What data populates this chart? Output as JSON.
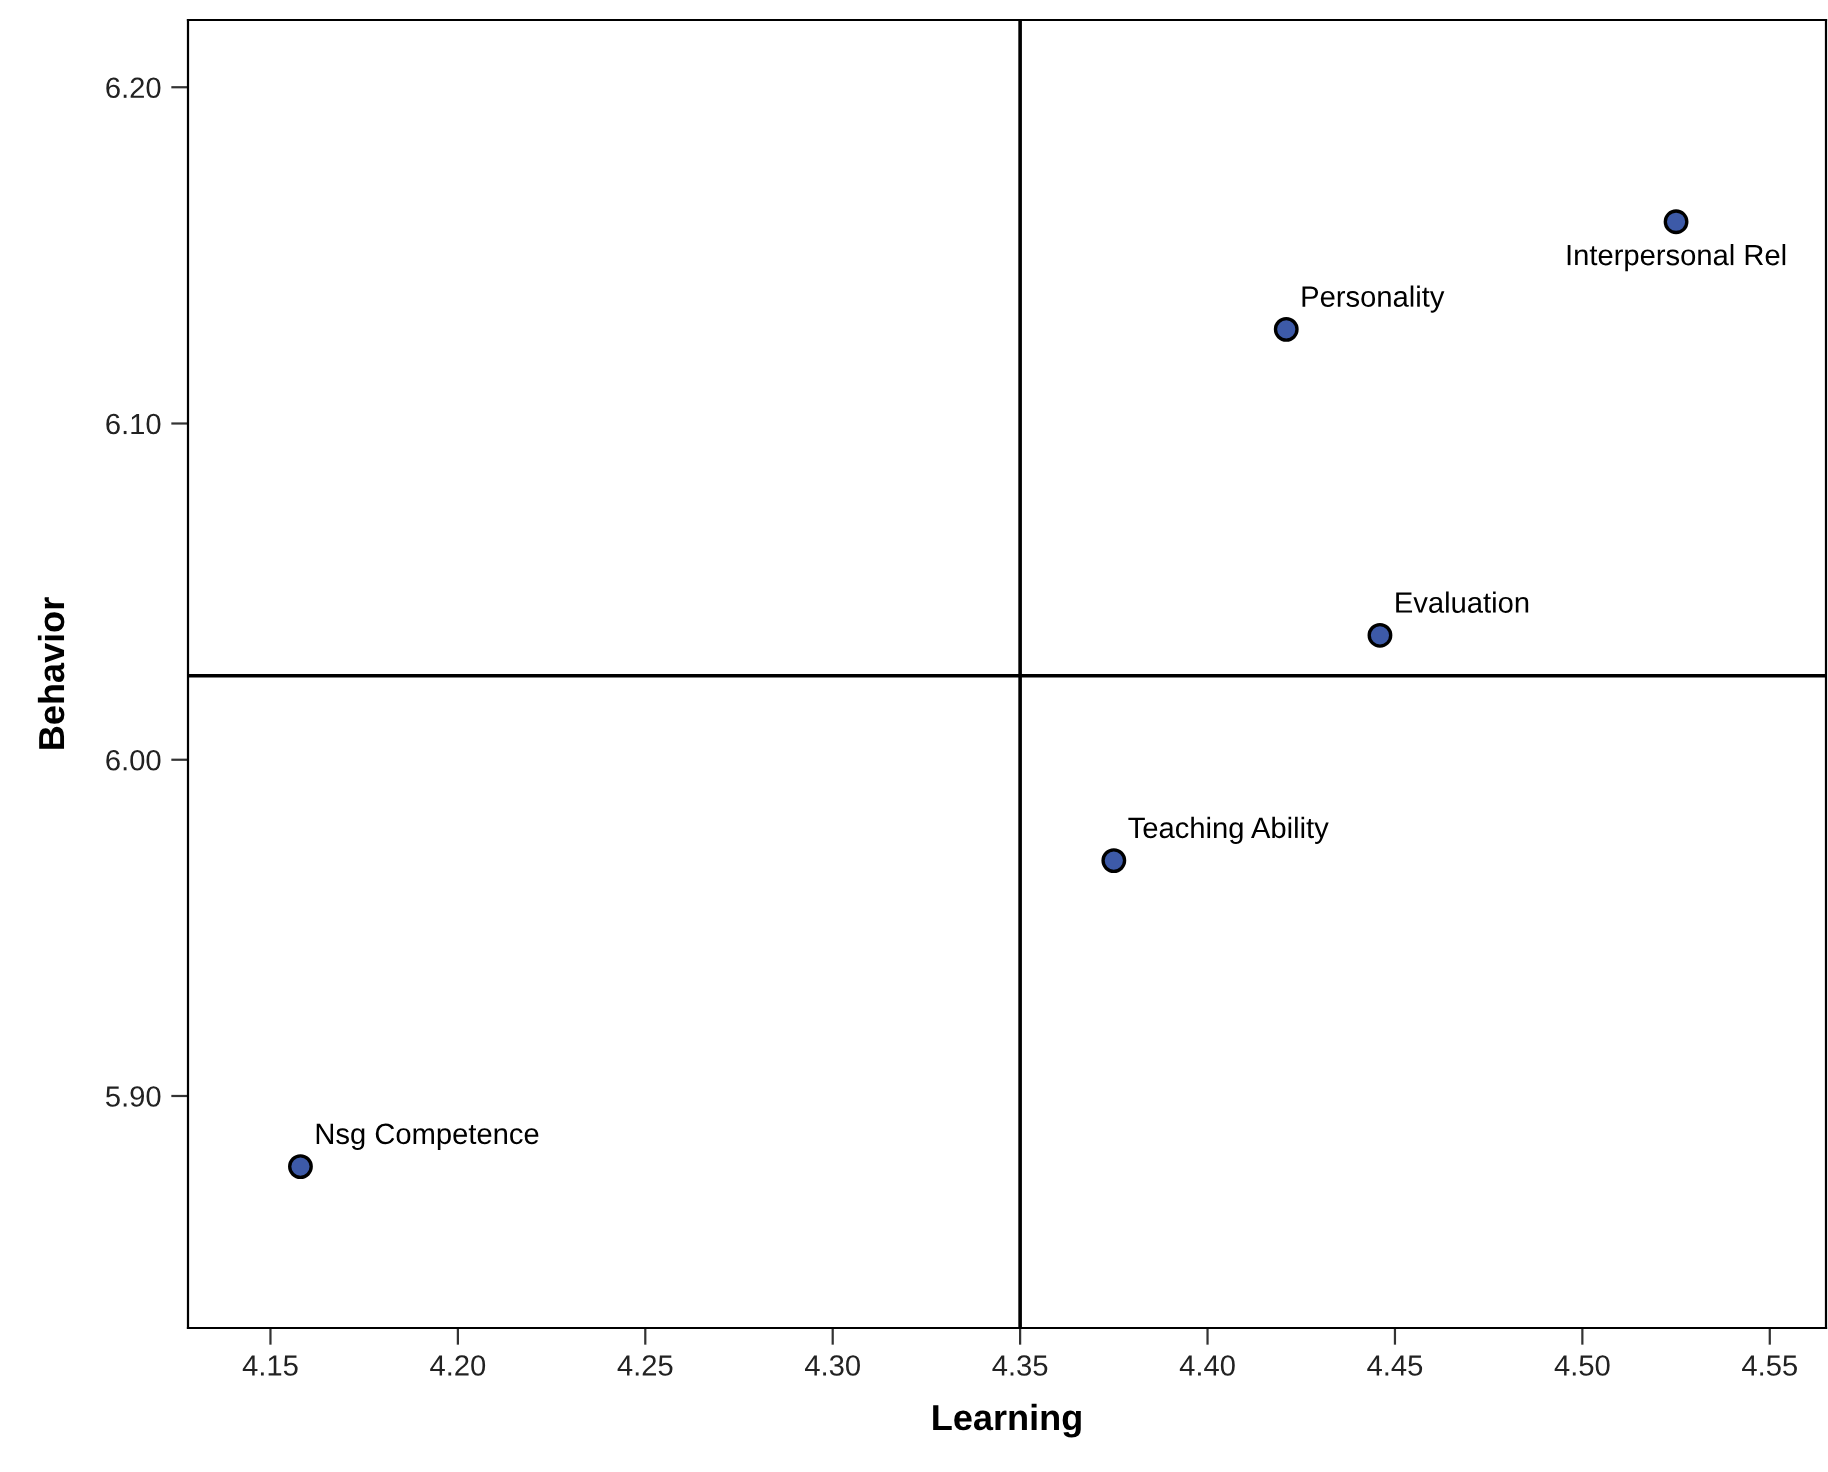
{
  "chart_data": {
    "type": "scatter",
    "xlabel": "Learning",
    "ylabel": "Behavior",
    "x": [
      4.525,
      4.421,
      4.446,
      4.375,
      4.158
    ],
    "series": [
      {
        "color": "#3d5aa8",
        "values": [
          6.16,
          6.128,
          6.037,
          5.97,
          5.879
        ]
      }
    ],
    "marker": "circle",
    "grid": false,
    "legend": false,
    "xlim": [
      4.128,
      4.565
    ],
    "xticks": [
      {
        "value": 4.15,
        "label": "4.15"
      },
      {
        "value": 4.2,
        "label": "4.20"
      },
      {
        "value": 4.25,
        "label": "4.25"
      },
      {
        "value": 4.3,
        "label": "4.30"
      },
      {
        "value": 4.35,
        "label": "4.35"
      },
      {
        "value": 4.4,
        "label": "4.40"
      },
      {
        "value": 4.45,
        "label": "4.45"
      },
      {
        "value": 4.5,
        "label": "4.50"
      },
      {
        "value": 4.55,
        "label": "4.55"
      }
    ],
    "ylim": [
      5.831,
      6.22
    ],
    "yticks": [
      {
        "value": 5.9,
        "label": "5.90"
      },
      {
        "value": 6.0,
        "label": "6.00"
      },
      {
        "value": 6.1,
        "label": "6.10"
      },
      {
        "value": 6.2,
        "label": "6.20"
      }
    ],
    "ref_lines": [
      {
        "axis": "x",
        "value": 4.35,
        "color": "#000000"
      },
      {
        "axis": "y",
        "value": 6.025,
        "color": "#000000"
      }
    ],
    "annotations": [
      {
        "text": "Interpersonal Rel",
        "x": 4.525,
        "y": 6.16
      },
      {
        "text": "Personality",
        "x": 4.421,
        "y": 6.128
      },
      {
        "text": "Evaluation",
        "x": 4.446,
        "y": 6.037
      },
      {
        "text": "Teaching Ability",
        "x": 4.375,
        "y": 5.97
      },
      {
        "text": "Nsg Competence",
        "x": 4.158,
        "y": 5.879
      }
    ]
  }
}
